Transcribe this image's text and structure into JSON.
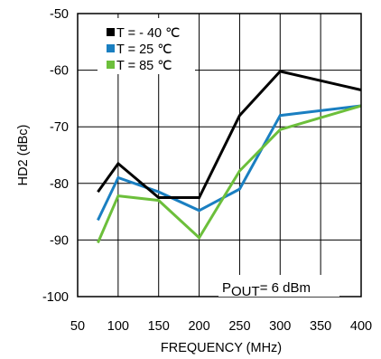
{
  "chart_data": {
    "type": "line",
    "title": "",
    "xlabel": "FREQUENCY (MHz)",
    "ylabel": "HD2 (dBc)",
    "xlim": [
      50,
      400
    ],
    "ylim": [
      -100,
      -50
    ],
    "x_ticks": [
      50,
      100,
      150,
      200,
      250,
      300,
      350,
      400
    ],
    "y_ticks": [
      -50,
      -60,
      -70,
      -80,
      -90,
      -100
    ],
    "grid": true,
    "legend_position": "top-left",
    "x": [
      75,
      100,
      150,
      200,
      250,
      300,
      400
    ],
    "series": [
      {
        "name": "T = - 40 ℃",
        "color": "#000000",
        "values": [
          -81.5,
          -76.5,
          -82.5,
          -82.5,
          -68,
          -60.2,
          -63.5
        ]
      },
      {
        "name": "T = 25 ℃",
        "color": "#1a7fc1",
        "values": [
          -86.5,
          -79,
          -81.5,
          -84.8,
          -81,
          -68,
          -66.3
        ]
      },
      {
        "name": "T = 85 ℃",
        "color": "#6cbf3b",
        "values": [
          -90.5,
          -82.2,
          -83,
          -89.6,
          -77.8,
          -70.5,
          -66.3
        ]
      }
    ],
    "annotation": {
      "base": "P",
      "sub": "OUT",
      "rest": "= 6 dBm"
    }
  }
}
